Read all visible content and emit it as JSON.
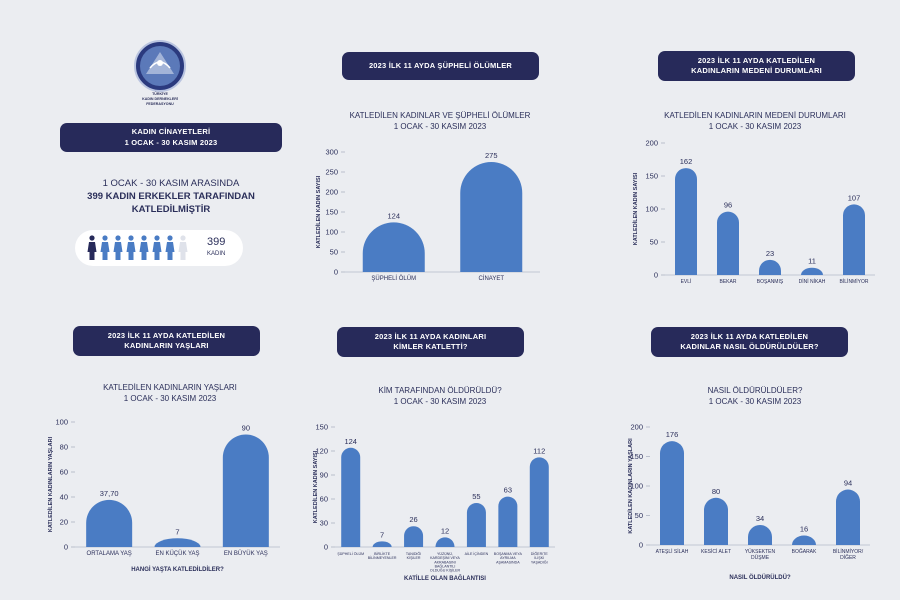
{
  "logo": {
    "line1": "TÜRKİYE",
    "line2": "KADIN DERNEKLERİ",
    "line3": "FEDERASYONU",
    "icon": "federation-logo"
  },
  "intro": {
    "pill_line1": "KADIN CİNAYETLERİ",
    "pill_line2": "1 OCAK - 30 KASIM 2023",
    "text_line1": "1 OCAK - 30 KASIM ARASINDA",
    "text_line2": "399 KADIN ERKEKLER TARAFINDAN",
    "text_line3": "KATLEDİLMİŞTİR",
    "count": "399",
    "count_label": "KADIN",
    "people_filled": 7,
    "people_total": 8
  },
  "colors": {
    "bar": "#4a7cc4",
    "pill": "#272a5a",
    "text": "#2b2f5a",
    "background": "#ebedf1",
    "person_dark": "#272a5a",
    "person_blue": "#4a7cc4",
    "person_light": "#dfe2ea"
  },
  "pills": {
    "p1": "2023 İLK 11 AYDA ŞÜPHELİ ÖLÜMLER",
    "p2_line1": "2023 İLK 11 AYDA KATLEDİLEN",
    "p2_line2": "KADINLARIN MEDENİ DURUMLARI",
    "p3_line1": "2023 İLK 11 AYDA KATLEDİLEN",
    "p3_line2": "KADINLARIN YAŞLARI",
    "p4_line1": "2023 İLK 11 AYDA KADINLARI",
    "p4_line2": "KİMLER KATLETTİ?",
    "p5_line1": "2023 İLK 11 AYDA KATLEDİLEN",
    "p5_line2": "KADINLAR NASIL ÖLDÜRÜLDÜLER?"
  },
  "chart_data": [
    {
      "id": "c1",
      "type": "bar",
      "title": "KATLEDİLEN KADINLAR VE ŞÜPHELİ ÖLÜMLER",
      "subtitle": "1 OCAK - 30 KASIM 2023",
      "ylabel": "KATLEDİLEN KADIN SAYISI",
      "xlabel": "",
      "categories": [
        "ŞÜPHELİ ÖLÜM",
        "CİNAYET"
      ],
      "values": [
        124,
        275
      ],
      "ylim": [
        0,
        300
      ],
      "yticks": [
        0,
        50,
        100,
        150,
        200,
        250,
        300
      ],
      "grid": false
    },
    {
      "id": "c2",
      "type": "bar",
      "title": "KATLEDİLEN KADINLARIN MEDENİ DURUMLARI",
      "subtitle": "1 OCAK - 30 KASIM 2023",
      "ylabel": "KATLEDİLEN KADIN SAYISI",
      "xlabel": "",
      "categories": [
        "EVLİ",
        "BEKAR",
        "BOŞANMIŞ",
        "DİNİ NİKAH",
        "BİLİNMİYOR"
      ],
      "values": [
        162,
        96,
        23,
        11,
        107
      ],
      "ylim": [
        0,
        200
      ],
      "yticks": [
        0,
        50,
        100,
        150,
        200
      ],
      "grid": false
    },
    {
      "id": "c3",
      "type": "bar",
      "title": "KATLEDİLEN KADINLARIN YAŞLARI",
      "subtitle": "1 OCAK - 30 KASIM 2023",
      "ylabel": "KATLEDİLEN KADINLARIN YAŞLARI",
      "xlabel": "HANGİ YAŞTA KATLEDİLDİLER?",
      "categories": [
        "ORTALAMA YAŞ",
        "EN KÜÇÜK YAŞ",
        "EN BÜYÜK YAŞ"
      ],
      "values": [
        37.7,
        7,
        90
      ],
      "value_labels": [
        "37,70",
        "7",
        "90"
      ],
      "ylim": [
        0,
        100
      ],
      "yticks": [
        0,
        20,
        40,
        60,
        80,
        100
      ],
      "grid": false
    },
    {
      "id": "c4",
      "type": "bar",
      "title": "KİM TARAFINDAN ÖLDÜRÜLDÜ?",
      "subtitle": "1 OCAK - 30 KASIM 2023",
      "ylabel": "KATLEDİLEN KADIN SAYISI",
      "xlabel": "KATİLLE OLAN BAĞLANTISI",
      "categories": [
        "ŞÜPHELİ ÖLÜM",
        "BİRLİKTE BİLİNMEYENLER",
        "TANIDIĞI KİŞİLER",
        "YÜZÜNÜ, KARDEŞİNİ VEYA AKRABASINI BAĞLANTILI OLDUĞU KİŞİLER",
        "AİLE İÇİNDEN",
        "BOŞANMA VEYA AYRILMA AŞAMASINDA",
        "DİĞER/TE İLİŞKİ YAŞADIĞI"
      ],
      "values": [
        124,
        7,
        26,
        12,
        55,
        63,
        112
      ],
      "ylim": [
        0,
        150
      ],
      "yticks": [
        0,
        30,
        60,
        90,
        120,
        150
      ],
      "grid": false
    },
    {
      "id": "c5",
      "type": "bar",
      "title": "NASIL ÖLDÜRÜLDÜLER?",
      "subtitle": "1 OCAK - 30 KASIM 2023",
      "ylabel": "KATLEDİLEN KADINLARIN YAŞLARI",
      "xlabel": "NASIL ÖLDÜRÜLDÜ?",
      "categories": [
        "ATEŞLİ SİLAH",
        "KESİCİ ALET",
        "YÜKSEKTEN DÜŞME",
        "BOĞARAK",
        "BİLİNMİYOR/ DİĞER"
      ],
      "values": [
        176,
        80,
        34,
        16,
        94
      ],
      "ylim": [
        0,
        200
      ],
      "yticks": [
        0,
        50,
        100,
        150,
        200
      ],
      "grid": false
    }
  ]
}
